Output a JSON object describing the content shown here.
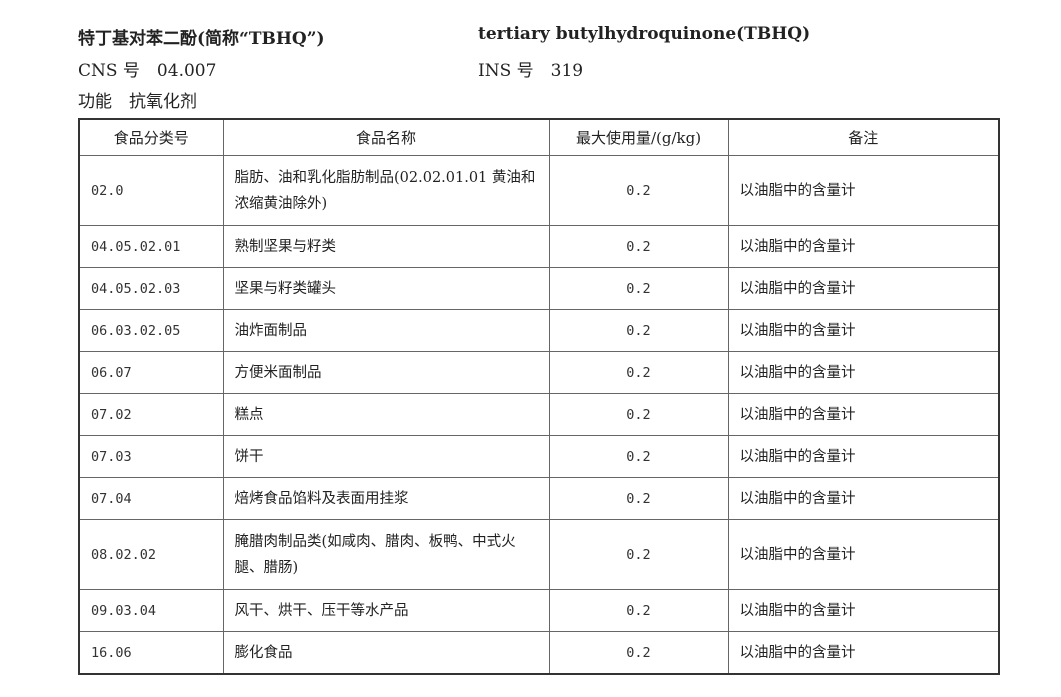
{
  "header": {
    "name_cn": "特丁基对苯二酚(简称“TBHQ”)",
    "name_en": "tertiary butylhydroquinone(TBHQ)",
    "cns": "CNS 号　04.007",
    "ins": "INS 号　319",
    "function": "功能　抗氧化剂"
  },
  "table": {
    "columns": [
      "食品分类号",
      "食品名称",
      "最大使用量/(g/kg)",
      "备注"
    ],
    "rows": [
      {
        "code": "02.0",
        "name": "脂肪、油和乳化脂肪制品(02.02.01.01 黄油和浓缩黄油除外)",
        "max": "0.2",
        "note": "以油脂中的含量计"
      },
      {
        "code": "04.05.02.01",
        "name": "熟制坚果与籽类",
        "max": "0.2",
        "note": "以油脂中的含量计"
      },
      {
        "code": "04.05.02.03",
        "name": "坚果与籽类罐头",
        "max": "0.2",
        "note": "以油脂中的含量计"
      },
      {
        "code": "06.03.02.05",
        "name": "油炸面制品",
        "max": "0.2",
        "note": "以油脂中的含量计"
      },
      {
        "code": "06.07",
        "name": "方便米面制品",
        "max": "0.2",
        "note": "以油脂中的含量计"
      },
      {
        "code": "07.02",
        "name": "糕点",
        "max": "0.2",
        "note": "以油脂中的含量计"
      },
      {
        "code": "07.03",
        "name": "饼干",
        "max": "0.2",
        "note": "以油脂中的含量计"
      },
      {
        "code": "07.04",
        "name": "焙烤食品馅料及表面用挂浆",
        "max": "0.2",
        "note": "以油脂中的含量计"
      },
      {
        "code": "08.02.02",
        "name": "腌腊肉制品类(如咸肉、腊肉、板鸭、中式火腿、腊肠)",
        "max": "0.2",
        "note": "以油脂中的含量计"
      },
      {
        "code": "09.03.04",
        "name": "风干、烘干、压干等水产品",
        "max": "0.2",
        "note": "以油脂中的含量计"
      },
      {
        "code": "16.06",
        "name": "膨化食品",
        "max": "0.2",
        "note": "以油脂中的含量计"
      }
    ]
  }
}
